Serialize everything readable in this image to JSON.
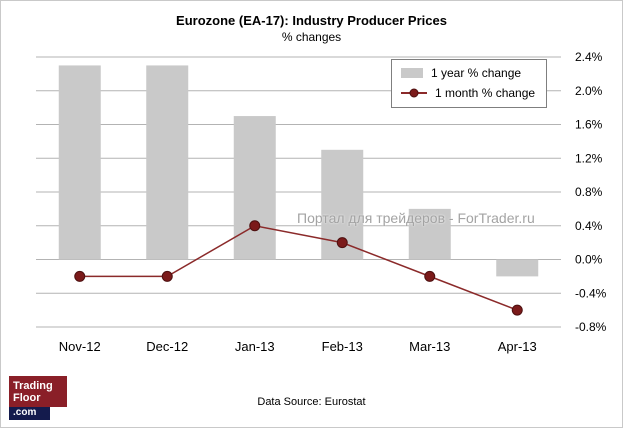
{
  "chart_data": {
    "type": "combo",
    "title": "Eurozone (EA-17): Industry Producer Prices",
    "subtitle": "% changes",
    "categories": [
      "Nov-12",
      "Dec-12",
      "Jan-13",
      "Feb-13",
      "Mar-13",
      "Apr-13"
    ],
    "series": [
      {
        "name": "1 year % change",
        "type": "bar",
        "color": "#c9c9c9",
        "values": [
          2.3,
          2.3,
          1.7,
          1.3,
          0.6,
          -0.2
        ]
      },
      {
        "name": "1 month % change",
        "type": "line",
        "color": "#8b2a2a",
        "marker_color": "#7b1a1a",
        "values": [
          -0.2,
          -0.2,
          0.4,
          0.2,
          -0.2,
          -0.6
        ]
      }
    ],
    "ylim": [
      -0.8,
      2.4
    ],
    "ytick_step": 0.4,
    "ytick_labels": [
      "-0.8%",
      "-0.4%",
      "0.0%",
      "0.4%",
      "0.8%",
      "1.2%",
      "1.6%",
      "2.0%",
      "2.4%"
    ],
    "yaxis_side": "right",
    "grid": true,
    "gridline_color": "#b3b3b3",
    "legend_position": "top-right"
  },
  "watermark": {
    "text": "Портал для трейдеров - ForTrader.ru"
  },
  "footer": {
    "source": "Data Source: Eurostat"
  },
  "logo": {
    "line1": "Trading",
    "line2": "Floor",
    "line3": ".com"
  }
}
